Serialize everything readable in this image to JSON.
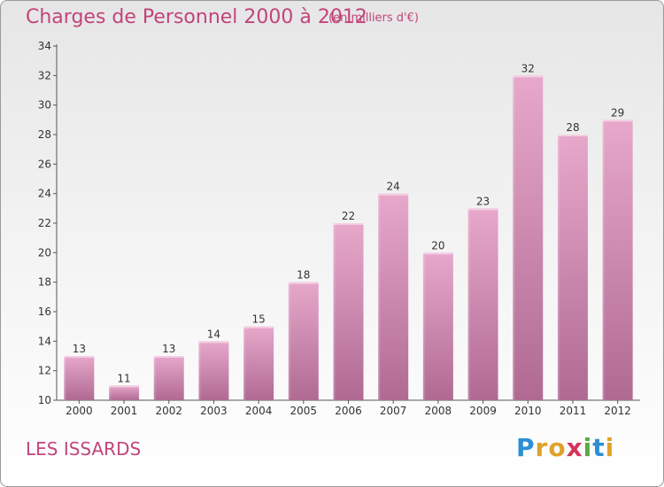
{
  "header": {
    "title": "Charges de Personnel 2000 à 2012",
    "subtitle": "(en milliers d'€)"
  },
  "footer": {
    "commune": "LES ISSARDS",
    "logo_letters": [
      {
        "char": "P",
        "color": "#2c8fd6"
      },
      {
        "char": "r",
        "color": "#e0a12a"
      },
      {
        "char": "o",
        "color": "#e0a12a"
      },
      {
        "char": "x",
        "color": "#d6335a"
      },
      {
        "char": "i",
        "color": "#5ba843"
      },
      {
        "char": "t",
        "color": "#2c8fd6"
      },
      {
        "char": "i",
        "color": "#e0a12a"
      }
    ]
  },
  "chart_data": {
    "type": "bar",
    "categories": [
      "2000",
      "2001",
      "2002",
      "2003",
      "2004",
      "2005",
      "2006",
      "2007",
      "2008",
      "2009",
      "2010",
      "2011",
      "2012"
    ],
    "values": [
      13,
      11,
      13,
      14,
      15,
      18,
      22,
      24,
      20,
      23,
      32,
      28,
      29
    ],
    "title": "Charges de Personnel 2000 à 2012",
    "subtitle": "(en milliers d'€)",
    "ylim": [
      10,
      34
    ],
    "yticks": [
      10,
      12,
      14,
      16,
      18,
      20,
      22,
      24,
      26,
      28,
      30,
      32,
      34
    ],
    "bar_color_top": "#e7a8cb",
    "bar_color_bottom": "#b06a92",
    "text_color": "#c2457a",
    "grid": false
  }
}
